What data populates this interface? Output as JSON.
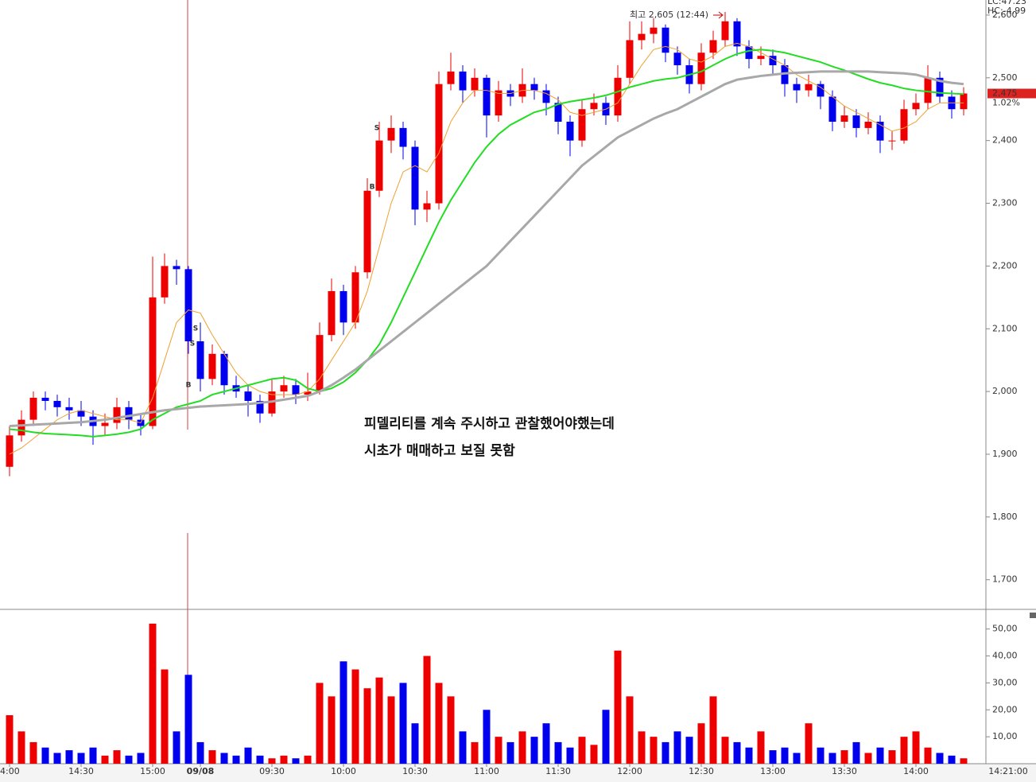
{
  "chart_data": {
    "type": "candlestick",
    "categories": [
      "4:00",
      null,
      null,
      null,
      null,
      null,
      "14:30",
      null,
      null,
      null,
      null,
      null,
      "15:00",
      null,
      null,
      null,
      "09/08",
      null,
      null,
      null,
      null,
      null,
      "09:30",
      null,
      null,
      null,
      null,
      null,
      "10:00",
      null,
      null,
      null,
      null,
      null,
      "10:30",
      null,
      null,
      null,
      null,
      null,
      "11:00",
      null,
      null,
      null,
      null,
      null,
      "11:30",
      null,
      null,
      null,
      null,
      null,
      "12:00",
      null,
      null,
      null,
      null,
      null,
      "12:30",
      null,
      null,
      null,
      null,
      null,
      "13:00",
      null,
      null,
      null,
      null,
      null,
      "13:30",
      null,
      null,
      null,
      null,
      null,
      "14:00",
      null,
      null,
      null,
      null
    ],
    "open": [
      1880,
      1930,
      1955,
      1990,
      1985,
      1975,
      1970,
      1960,
      1945,
      1950,
      1975,
      1955,
      1945,
      2150,
      2200,
      2195,
      2080,
      2020,
      2060,
      2010,
      2000,
      1985,
      1965,
      2000,
      2010,
      1995,
      2000,
      2090,
      2160,
      2110,
      2190,
      2320,
      2400,
      2420,
      2390,
      2290,
      2300,
      2490,
      2510,
      2480,
      2500,
      2440,
      2480,
      2470,
      2490,
      2480,
      2460,
      2430,
      2400,
      2450,
      2460,
      2440,
      2500,
      2560,
      2570,
      2580,
      2540,
      2520,
      2490,
      2540,
      2560,
      2590,
      2550,
      2530,
      2535,
      2520,
      2490,
      2480,
      2490,
      2470,
      2430,
      2440,
      2420,
      2430,
      2400,
      2400,
      2450,
      2460,
      2500,
      2470,
      2450
    ],
    "high": [
      1945,
      1970,
      2000,
      2000,
      1995,
      1990,
      1985,
      1970,
      1965,
      1990,
      1985,
      1965,
      2215,
      2220,
      2210,
      2200,
      2110,
      2075,
      2065,
      2025,
      2010,
      1995,
      2020,
      2025,
      2020,
      2030,
      2110,
      2180,
      2170,
      2200,
      2340,
      2430,
      2440,
      2430,
      2400,
      2320,
      2510,
      2540,
      2520,
      2515,
      2505,
      2495,
      2490,
      2515,
      2500,
      2490,
      2470,
      2440,
      2465,
      2475,
      2470,
      2520,
      2590,
      2590,
      2595,
      2585,
      2550,
      2530,
      2555,
      2575,
      2605,
      2595,
      2560,
      2550,
      2545,
      2530,
      2500,
      2505,
      2495,
      2480,
      2455,
      2450,
      2445,
      2440,
      2415,
      2465,
      2475,
      2520,
      2510,
      2480,
      2485
    ],
    "low": [
      1865,
      1920,
      1945,
      1970,
      1960,
      1955,
      1945,
      1915,
      1930,
      1940,
      1940,
      1930,
      1940,
      2140,
      2170,
      2060,
      2000,
      2010,
      1995,
      1990,
      1960,
      1950,
      1960,
      1990,
      1980,
      1985,
      1995,
      2080,
      2090,
      2100,
      2180,
      2310,
      2380,
      2370,
      2265,
      2270,
      2290,
      2480,
      2460,
      2470,
      2405,
      2430,
      2455,
      2460,
      2465,
      2440,
      2410,
      2375,
      2390,
      2440,
      2425,
      2430,
      2490,
      2545,
      2555,
      2525,
      2505,
      2475,
      2480,
      2530,
      2550,
      2535,
      2515,
      2520,
      2505,
      2470,
      2460,
      2470,
      2450,
      2415,
      2420,
      2405,
      2410,
      2380,
      2385,
      2395,
      2440,
      2450,
      2460,
      2435,
      2440
    ],
    "close": [
      1930,
      1955,
      1990,
      1985,
      1975,
      1970,
      1960,
      1945,
      1950,
      1975,
      1955,
      1945,
      2150,
      2200,
      2195,
      2080,
      2020,
      2060,
      2010,
      2000,
      1985,
      1965,
      2000,
      2010,
      1995,
      2000,
      2090,
      2160,
      2110,
      2190,
      2320,
      2400,
      2420,
      2390,
      2290,
      2300,
      2490,
      2510,
      2480,
      2500,
      2440,
      2480,
      2470,
      2490,
      2480,
      2460,
      2430,
      2400,
      2450,
      2460,
      2440,
      2500,
      2560,
      2570,
      2580,
      2540,
      2520,
      2490,
      2540,
      2560,
      2590,
      2550,
      2530,
      2535,
      2520,
      2490,
      2480,
      2490,
      2470,
      2430,
      2440,
      2420,
      2430,
      2400,
      2400,
      2450,
      2460,
      2500,
      2470,
      2450,
      2475
    ],
    "volume": [
      18,
      12,
      8,
      6,
      4,
      5,
      4,
      6,
      3,
      5,
      3,
      4,
      52,
      35,
      12,
      33,
      8,
      5,
      4,
      3,
      6,
      3,
      2,
      3,
      2,
      3,
      30,
      25,
      38,
      35,
      28,
      32,
      25,
      30,
      15,
      40,
      30,
      25,
      12,
      8,
      20,
      10,
      8,
      12,
      10,
      15,
      8,
      6,
      10,
      7,
      20,
      42,
      25,
      12,
      10,
      8,
      12,
      10,
      15,
      25,
      10,
      8,
      6,
      12,
      5,
      6,
      4,
      15,
      6,
      4,
      5,
      8,
      4,
      6,
      5,
      10,
      12,
      6,
      4,
      3,
      2
    ],
    "moving_averages": [
      {
        "color": "#f0a030",
        "values": [
          1900,
          1910,
          1925,
          1940,
          1955,
          1965,
          1970,
          1965,
          1960,
          1955,
          1955,
          1950,
          1990,
          2050,
          2110,
          2130,
          2125,
          2090,
          2060,
          2030,
          2010,
          2000,
          1995,
          1995,
          1995,
          2000,
          2020,
          2050,
          2080,
          2110,
          2160,
          2230,
          2300,
          2350,
          2360,
          2350,
          2380,
          2430,
          2460,
          2480,
          2480,
          2475,
          2475,
          2480,
          2480,
          2475,
          2465,
          2445,
          2440,
          2445,
          2450,
          2460,
          2490,
          2520,
          2545,
          2550,
          2545,
          2530,
          2525,
          2535,
          2550,
          2555,
          2550,
          2540,
          2530,
          2520,
          2505,
          2495,
          2485,
          2470,
          2455,
          2445,
          2435,
          2425,
          2415,
          2420,
          2430,
          2450,
          2460,
          2460,
          2460
        ]
      },
      {
        "color": "#22dd22",
        "values": [
          1940,
          1938,
          1935,
          1933,
          1932,
          1931,
          1930,
          1928,
          1930,
          1932,
          1935,
          1940,
          1955,
          1965,
          1975,
          1980,
          1985,
          1995,
          2000,
          2005,
          2010,
          2015,
          2020,
          2022,
          2018,
          2005,
          2000,
          2005,
          2015,
          2030,
          2050,
          2075,
          2110,
          2150,
          2190,
          2230,
          2270,
          2305,
          2335,
          2365,
          2390,
          2410,
          2425,
          2435,
          2445,
          2450,
          2458,
          2462,
          2465,
          2468,
          2472,
          2478,
          2485,
          2490,
          2495,
          2498,
          2500,
          2505,
          2510,
          2520,
          2530,
          2538,
          2543,
          2545,
          2543,
          2540,
          2535,
          2530,
          2525,
          2518,
          2512,
          2505,
          2498,
          2492,
          2488,
          2483,
          2480,
          2478,
          2476,
          2475,
          2474
        ]
      },
      {
        "color": "#a8a8a8",
        "values": [
          1945,
          1946,
          1947,
          1948,
          1949,
          1950,
          1951,
          1953,
          1955,
          1958,
          1961,
          1964,
          1967,
          1970,
          1972,
          1974,
          1976,
          1977,
          1978,
          1979,
          1980,
          1982,
          1984,
          1987,
          1990,
          1993,
          2000,
          2010,
          2022,
          2035,
          2050,
          2065,
          2080,
          2095,
          2110,
          2125,
          2140,
          2155,
          2170,
          2185,
          2200,
          2220,
          2240,
          2260,
          2280,
          2300,
          2320,
          2340,
          2360,
          2375,
          2390,
          2405,
          2415,
          2425,
          2435,
          2443,
          2450,
          2460,
          2470,
          2480,
          2490,
          2497,
          2500,
          2503,
          2505,
          2507,
          2508,
          2509,
          2510,
          2510,
          2510,
          2510,
          2510,
          2509,
          2508,
          2507,
          2505,
          2500,
          2495,
          2492,
          2490
        ]
      }
    ],
    "up_color": "#ee0000",
    "down_color": "#0000ee",
    "ylim": [
      1654,
      2624
    ],
    "yticks": [
      {
        "value": 1700,
        "label": "1,700"
      },
      {
        "value": 1800,
        "label": "1,800"
      },
      {
        "value": 1900,
        "label": "1,900"
      },
      {
        "value": 2000,
        "label": "2,000"
      },
      {
        "value": 2100,
        "label": "2,100"
      },
      {
        "value": 2200,
        "label": "2,200"
      },
      {
        "value": 2300,
        "label": "2,300"
      },
      {
        "value": 2400,
        "label": "2,400"
      },
      {
        "value": 2500,
        "label": "2,500"
      },
      {
        "value": 2600,
        "label": "2,600"
      }
    ],
    "volume_ylim": [
      0,
      57
    ],
    "volume_yticks": [
      {
        "value": 10,
        "label": "10,00"
      },
      {
        "value": 20,
        "label": "20,00"
      },
      {
        "value": 30,
        "label": "30,00"
      },
      {
        "value": 40,
        "label": "40,00"
      },
      {
        "value": 50,
        "label": "50,00"
      }
    ],
    "last_price": {
      "value": 2475,
      "label": "2,475"
    },
    "change_label": "1.02%",
    "high_annotation": "최고 2,605 (12:44)",
    "indicator_lc": "LC:47.23",
    "indicator_hc": "HC:-4.99",
    "current_time": "14:21:00",
    "signals": [
      "S",
      "S",
      "B",
      "S",
      "B"
    ],
    "notes": [
      "피델리티를 계속 주시하고 관찰했어야했는데",
      "시초가 매매하고 보질 못함"
    ]
  }
}
